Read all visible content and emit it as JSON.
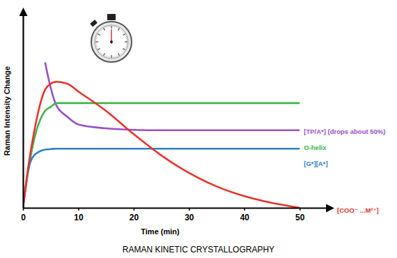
{
  "chart_data": {
    "type": "line",
    "title": "RAMAN KINETIC CRYSTALLOGRAPHY",
    "xlabel": "Time (min)",
    "ylabel": "Raman Intensity Change",
    "x": [
      0,
      1,
      2,
      4,
      5,
      6,
      8,
      10,
      15,
      20,
      25,
      30,
      35,
      40,
      45,
      50
    ],
    "series": [
      {
        "name": "[TP/A*] (drops about 50%)",
        "color": "#9a4fc8",
        "values": [
          null,
          null,
          null,
          7.5,
          6.2,
          5.3,
          4.7,
          4.3,
          4.1,
          4.02,
          4.0,
          4.0,
          4.0,
          4.0,
          4.0,
          4.0
        ]
      },
      {
        "name": "O-helix",
        "color": "#3db54a",
        "values": [
          0,
          2.0,
          3.5,
          5.0,
          5.2,
          5.4,
          5.4,
          5.4,
          5.4,
          5.4,
          5.4,
          5.4,
          5.4,
          5.4,
          5.4,
          5.4
        ]
      },
      {
        "name": "[G*][A*]",
        "color": "#2f80c3",
        "values": [
          0,
          2.0,
          2.7,
          3.0,
          3.03,
          3.05,
          3.05,
          3.05,
          3.05,
          3.05,
          3.05,
          3.05,
          3.05,
          3.05,
          3.05,
          3.05
        ]
      },
      {
        "name": "[COO⁻ ...M²⁺]",
        "color": "#e8322a",
        "values": [
          0,
          2.2,
          3.9,
          6.1,
          6.4,
          6.5,
          6.4,
          6.0,
          5.0,
          3.8,
          2.7,
          1.8,
          1.1,
          0.6,
          0.25,
          0
        ]
      }
    ],
    "xlim": [
      0,
      55
    ],
    "xticks": [
      0,
      10,
      20,
      30,
      40,
      50
    ],
    "ylim": [
      0,
      10
    ],
    "yticks": [],
    "tick_labels": "x",
    "grid": false
  }
}
